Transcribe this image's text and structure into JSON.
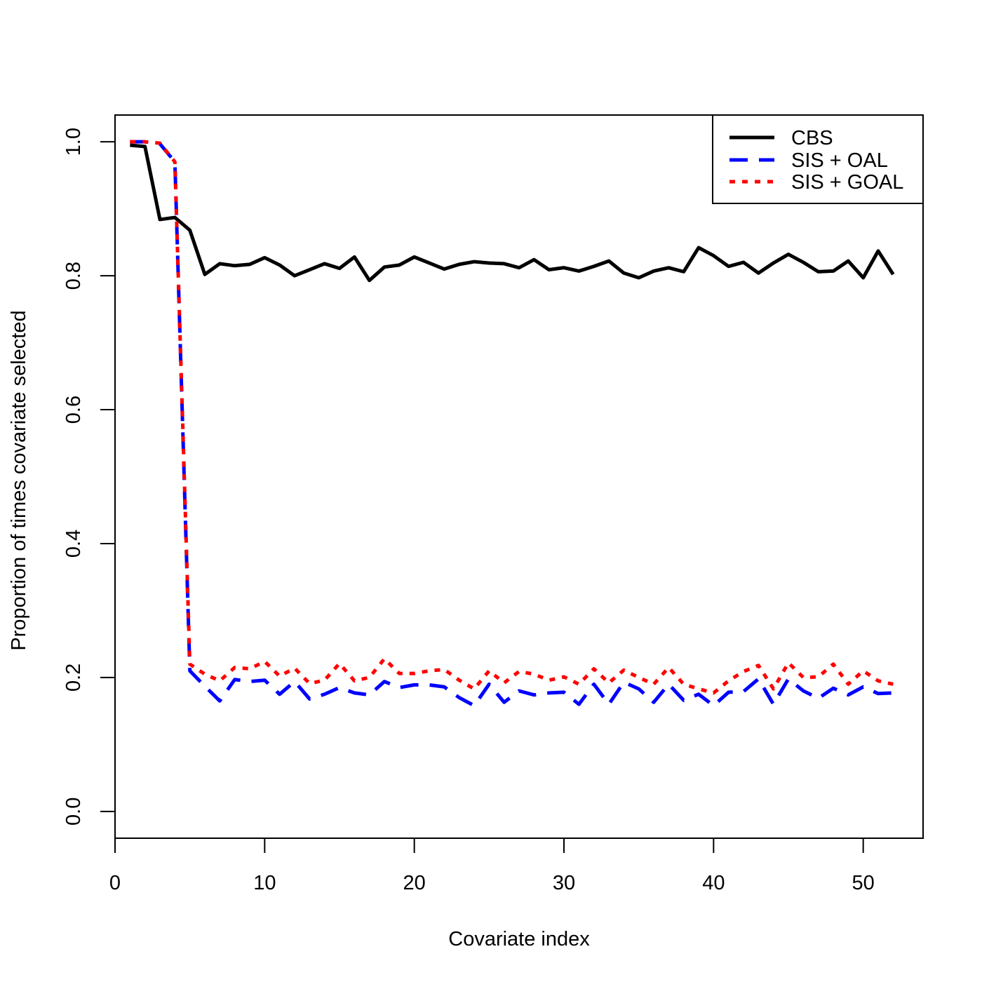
{
  "chart_data": {
    "type": "line",
    "title": "",
    "xlabel": "Covariate index",
    "ylabel": "Proportion of times covariate selected",
    "xlim": [
      0,
      54
    ],
    "ylim": [
      -0.04,
      1.04
    ],
    "xticks": [
      0,
      10,
      20,
      30,
      40,
      50
    ],
    "xtick_labels": [
      "0",
      "10",
      "20",
      "30",
      "40",
      "50"
    ],
    "yticks": [
      0.0,
      0.2,
      0.4,
      0.6,
      0.8,
      1.0
    ],
    "ytick_labels": [
      "0.0",
      "0.2",
      "0.4",
      "0.6",
      "0.8",
      "1.0"
    ],
    "grid": false,
    "legend_position": "top-right",
    "x": [
      1,
      2,
      3,
      4,
      5,
      6,
      7,
      8,
      9,
      10,
      11,
      12,
      13,
      14,
      15,
      16,
      17,
      18,
      19,
      20,
      21,
      22,
      23,
      24,
      25,
      26,
      27,
      28,
      29,
      30,
      31,
      32,
      33,
      34,
      35,
      36,
      37,
      38,
      39,
      40,
      41,
      42,
      43,
      44,
      45,
      46,
      47,
      48,
      49,
      50,
      51,
      52
    ],
    "series": [
      {
        "name": "CBS",
        "color": "#000000",
        "dash": "solid",
        "values": [
          0.995,
          0.993,
          0.884,
          0.887,
          0.868,
          0.802,
          0.818,
          0.815,
          0.817,
          0.827,
          0.816,
          0.8,
          0.809,
          0.818,
          0.811,
          0.828,
          0.793,
          0.813,
          0.816,
          0.828,
          0.819,
          0.81,
          0.817,
          0.821,
          0.819,
          0.818,
          0.812,
          0.824,
          0.809,
          0.812,
          0.807,
          0.814,
          0.822,
          0.804,
          0.797,
          0.807,
          0.812,
          0.806,
          0.842,
          0.83,
          0.814,
          0.82,
          0.804,
          0.819,
          0.832,
          0.82,
          0.806,
          0.807,
          0.822,
          0.797,
          0.837,
          0.802
        ]
      },
      {
        "name": "SIS + OAL",
        "color": "#0000ff",
        "dash": "dashed",
        "values": [
          1.0,
          1.0,
          0.997,
          0.97,
          0.21,
          0.187,
          0.165,
          0.197,
          0.194,
          0.196,
          0.175,
          0.194,
          0.168,
          0.175,
          0.185,
          0.177,
          0.174,
          0.194,
          0.185,
          0.189,
          0.189,
          0.186,
          0.17,
          0.158,
          0.19,
          0.163,
          0.18,
          0.174,
          0.177,
          0.178,
          0.16,
          0.19,
          0.16,
          0.193,
          0.183,
          0.163,
          0.19,
          0.166,
          0.175,
          0.158,
          0.178,
          0.179,
          0.198,
          0.16,
          0.198,
          0.18,
          0.169,
          0.184,
          0.174,
          0.186,
          0.176,
          0.177
        ]
      },
      {
        "name": "SIS + GOAL",
        "color": "#ff0000",
        "dash": "dotted",
        "values": [
          1.0,
          1.0,
          0.998,
          0.97,
          0.22,
          0.205,
          0.195,
          0.215,
          0.213,
          0.224,
          0.202,
          0.214,
          0.191,
          0.196,
          0.221,
          0.195,
          0.2,
          0.228,
          0.206,
          0.206,
          0.21,
          0.212,
          0.196,
          0.183,
          0.21,
          0.192,
          0.209,
          0.205,
          0.196,
          0.201,
          0.19,
          0.213,
          0.192,
          0.211,
          0.2,
          0.19,
          0.215,
          0.19,
          0.183,
          0.177,
          0.195,
          0.209,
          0.218,
          0.183,
          0.222,
          0.2,
          0.201,
          0.22,
          0.19,
          0.21,
          0.195,
          0.19
        ]
      }
    ]
  }
}
